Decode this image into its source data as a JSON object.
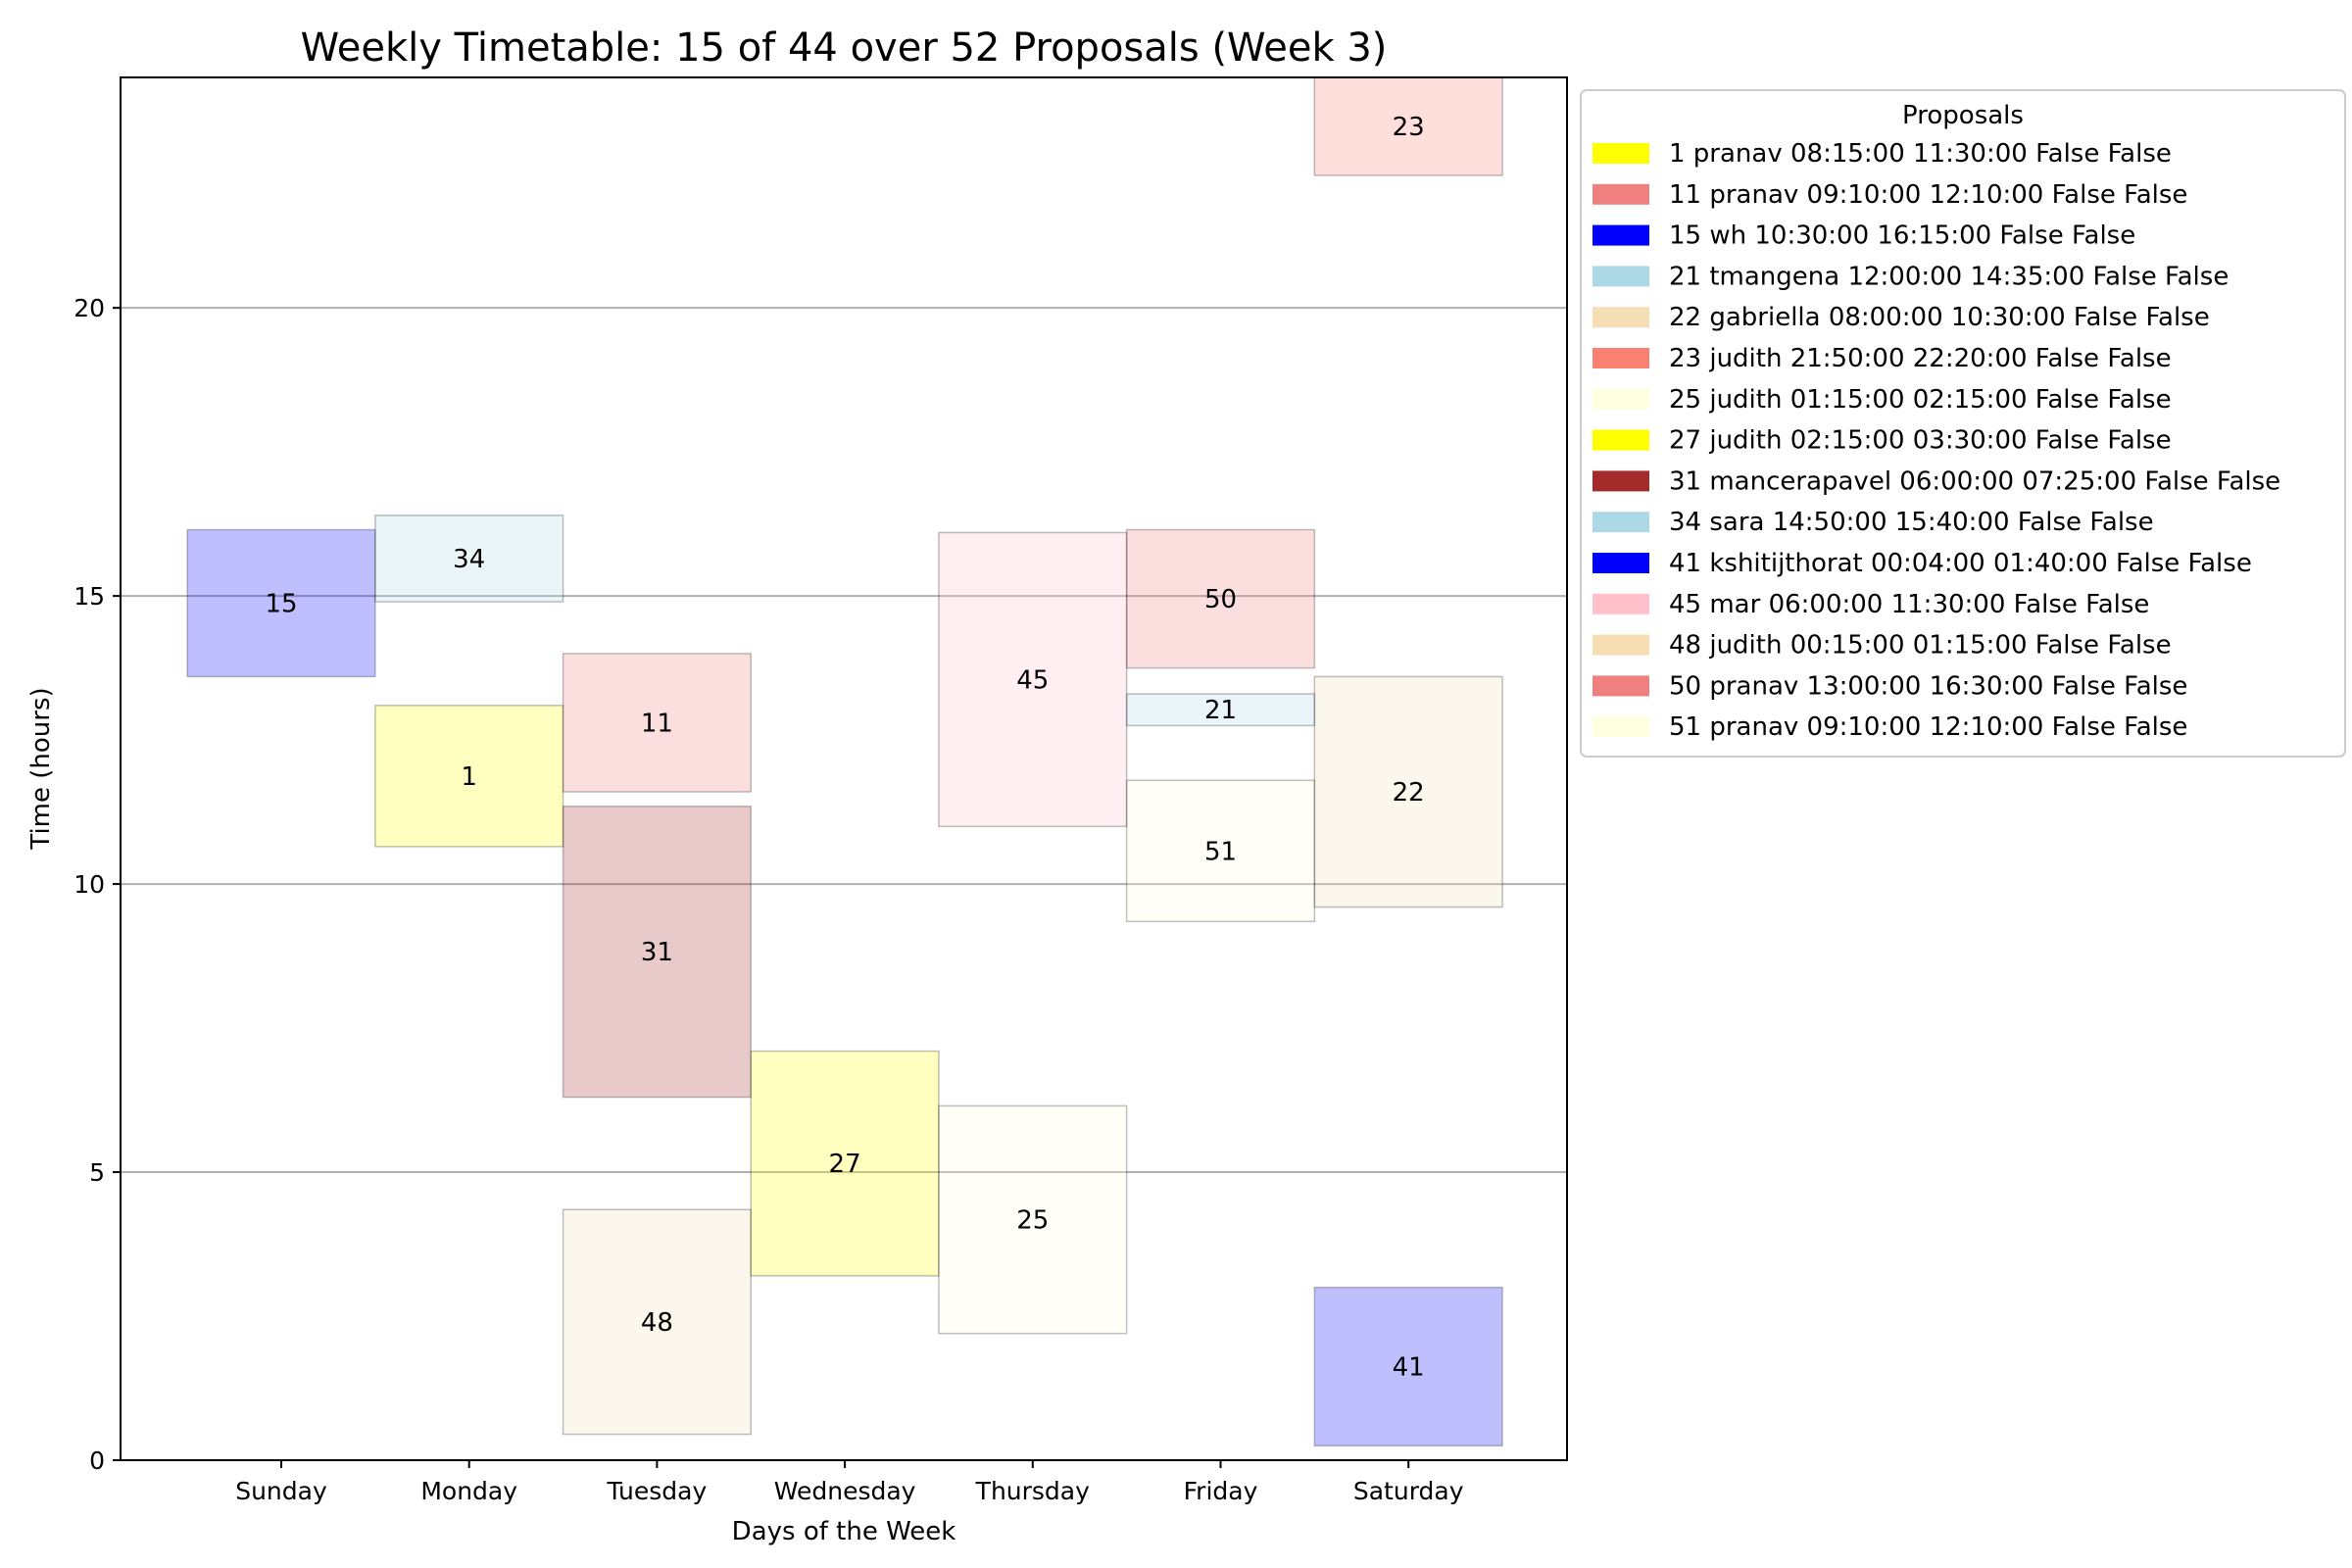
{
  "chart_data": {
    "type": "timetable",
    "title": "Weekly Timetable: 15 of 44 over 52 Proposals (Week 3)",
    "xlabel": "Days of the Week",
    "ylabel": "Time (hours)",
    "categories": [
      "Sunday",
      "Monday",
      "Tuesday",
      "Wednesday",
      "Thursday",
      "Friday",
      "Saturday"
    ],
    "ylim": [
      0,
      24
    ],
    "yticks": [
      0,
      5,
      10,
      15,
      20
    ],
    "grid": "horizontal",
    "legend_title": "Proposals",
    "legend_position": "outside-right",
    "blocks": [
      {
        "id": "15",
        "day": "Sunday",
        "start": 13.6,
        "end": 16.15,
        "color": "#0000ff",
        "alpha": 0.25
      },
      {
        "id": "34",
        "day": "Monday",
        "start": 14.9,
        "end": 16.4,
        "color": "#add8e6",
        "alpha": 0.25
      },
      {
        "id": "1",
        "day": "Monday",
        "start": 10.65,
        "end": 13.1,
        "color": "#ffff00",
        "alpha": 0.25
      },
      {
        "id": "11",
        "day": "Tuesday",
        "start": 11.6,
        "end": 14.0,
        "color": "#f08080",
        "alpha": 0.25
      },
      {
        "id": "31",
        "day": "Tuesday",
        "start": 6.3,
        "end": 11.35,
        "color": "#a52a2a",
        "alpha": 0.25
      },
      {
        "id": "48",
        "day": "Tuesday",
        "start": 0.45,
        "end": 4.35,
        "color": "#f5deb3",
        "alpha": 0.25
      },
      {
        "id": "27",
        "day": "Wednesday",
        "start": 3.2,
        "end": 7.1,
        "color": "#ffff00",
        "alpha": 0.25
      },
      {
        "id": "45",
        "day": "Thursday",
        "start": 11.0,
        "end": 16.1,
        "color": "#ffc0cb",
        "alpha": 0.25
      },
      {
        "id": "25",
        "day": "Thursday",
        "start": 2.2,
        "end": 6.15,
        "color": "#ffffe0",
        "alpha": 0.25
      },
      {
        "id": "50",
        "day": "Friday",
        "start": 13.75,
        "end": 16.15,
        "color": "#f08080",
        "alpha": 0.25
      },
      {
        "id": "21",
        "day": "Friday",
        "start": 12.75,
        "end": 13.3,
        "color": "#add8e6",
        "alpha": 0.25
      },
      {
        "id": "51",
        "day": "Friday",
        "start": 9.35,
        "end": 11.8,
        "color": "#ffffe0",
        "alpha": 0.25
      },
      {
        "id": "23",
        "day": "Saturday",
        "start": 22.3,
        "end": 24.0,
        "color": "#fa8072",
        "alpha": 0.25
      },
      {
        "id": "22",
        "day": "Saturday",
        "start": 9.6,
        "end": 13.6,
        "color": "#f5deb3",
        "alpha": 0.25
      },
      {
        "id": "41",
        "day": "Saturday",
        "start": 0.25,
        "end": 3.0,
        "color": "#0000ff",
        "alpha": 0.25
      }
    ],
    "legend": [
      {
        "label": "1 pranav 08:15:00 11:30:00 False False",
        "color": "#ffff00"
      },
      {
        "label": "11 pranav 09:10:00 12:10:00 False False",
        "color": "#f08080"
      },
      {
        "label": "15 wh 10:30:00 16:15:00 False False",
        "color": "#0000ff"
      },
      {
        "label": "21 tmangena 12:00:00 14:35:00 False False",
        "color": "#add8e6"
      },
      {
        "label": "22 gabriella 08:00:00 10:30:00 False False",
        "color": "#f5deb3"
      },
      {
        "label": "23 judith 21:50:00 22:20:00 False False",
        "color": "#fa8072"
      },
      {
        "label": "25 judith 01:15:00 02:15:00 False False",
        "color": "#ffffe0"
      },
      {
        "label": "27 judith 02:15:00 03:30:00 False False",
        "color": "#ffff00"
      },
      {
        "label": "31 mancerapavel 06:00:00 07:25:00 False False",
        "color": "#a52a2a"
      },
      {
        "label": "34 sara 14:50:00 15:40:00 False False",
        "color": "#add8e6"
      },
      {
        "label": "41 kshitijthorat 00:04:00 01:40:00 False False",
        "color": "#0000ff"
      },
      {
        "label": "45 mar 06:00:00 11:30:00 False False",
        "color": "#ffc0cb"
      },
      {
        "label": "48 judith 00:15:00 01:15:00 False False",
        "color": "#f5deb3"
      },
      {
        "label": "50 pranav 13:00:00 16:30:00 False False",
        "color": "#f08080"
      },
      {
        "label": "51 pranav 09:10:00 12:10:00 False False",
        "color": "#ffffe0"
      }
    ]
  }
}
